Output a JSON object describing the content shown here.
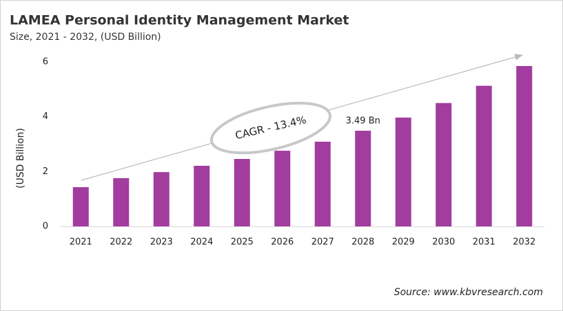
{
  "chart_data": {
    "type": "bar",
    "title": "LAMEA Personal Identity Management Market",
    "subtitle": "Size, 2021 - 2032, (USD Billion)",
    "y_label": "(USD Billion)",
    "annotation": "CAGR - 13.4%",
    "source": "Source: www.kbvresearch.com",
    "categories": [
      "2021",
      "2022",
      "2023",
      "2024",
      "2025",
      "2026",
      "2027",
      "2028",
      "2029",
      "2030",
      "2031",
      "2032"
    ],
    "values": [
      1.43,
      1.76,
      1.98,
      2.21,
      2.46,
      2.76,
      3.09,
      3.49,
      3.97,
      4.5,
      5.13,
      5.85
    ],
    "value_labels": [
      null,
      null,
      null,
      null,
      null,
      null,
      null,
      "3.49 Bn",
      null,
      null,
      null,
      null
    ],
    "color": "#a23c9e",
    "ylim": [
      0,
      6
    ],
    "yticks": [
      0,
      2,
      4,
      6
    ],
    "grid": false
  }
}
